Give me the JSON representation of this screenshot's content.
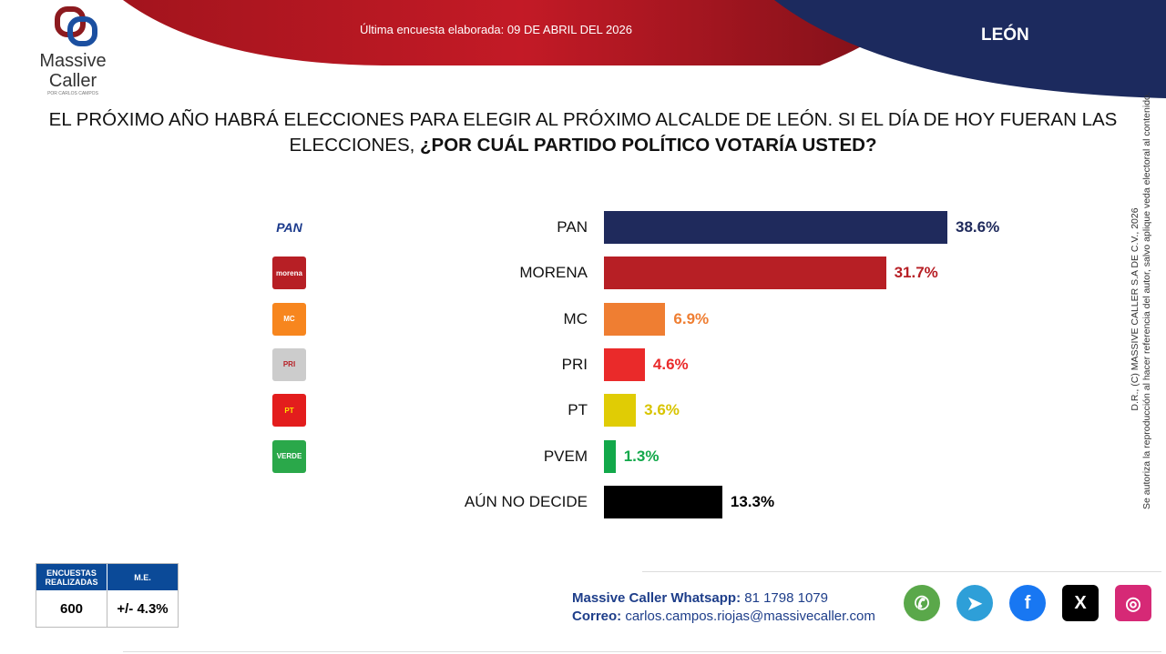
{
  "header": {
    "date_text": "Última encuesta elaborada: 09 DE ABRIL DEL 2026",
    "city": "LEÓN"
  },
  "brand": {
    "line1": "Massive",
    "line2": "Caller",
    "tagline": "POR CARLOS CAMPOS"
  },
  "question": {
    "normal": "EL PRÓXIMO AÑO HABRÁ ELECCIONES PARA ELEGIR AL PRÓXIMO ALCALDE DE LEÓN. SI EL DÍA DE HOY FUERAN LAS ELECCIONES, ",
    "bold": "¿POR CUÁL PARTIDO POLÍTICO VOTARÍA USTED?"
  },
  "chart_data": {
    "type": "bar",
    "orientation": "horizontal",
    "categories": [
      "PAN",
      "MORENA",
      "MC",
      "PRI",
      "PT",
      "PVEM",
      "AÚN NO DECIDE"
    ],
    "values": [
      38.6,
      31.7,
      6.9,
      4.6,
      3.6,
      1.3,
      13.3
    ],
    "labels": [
      "38.6%",
      "31.7%",
      "6.9%",
      "4.6%",
      "3.6%",
      "1.3%",
      "13.3%"
    ],
    "colors": [
      "#1f2a5c",
      "#b71f25",
      "#ef7e32",
      "#ea2a2a",
      "#e0cc05",
      "#12a84a",
      "#000000"
    ],
    "value_label_colors": [
      "#1f2a5c",
      "#b71f25",
      "#ef7e32",
      "#ea2a2a",
      "#d8c400",
      "#12a84a",
      "#000000"
    ],
    "party_logos": [
      {
        "text": "PAN",
        "bg": "#ffffff",
        "fg": "#1b3a8c"
      },
      {
        "text": "morena",
        "bg": "#b71f25",
        "fg": "#ffffff"
      },
      {
        "text": "MC",
        "bg": "#f7861e",
        "fg": "#ffffff"
      },
      {
        "text": "PRI",
        "bg": "#cccccc",
        "fg": "#b71f25"
      },
      {
        "text": "PT",
        "bg": "#e31d1d",
        "fg": "#ffe000"
      },
      {
        "text": "VERDE",
        "bg": "#2aa84a",
        "fg": "#ffffff"
      },
      {
        "text": "",
        "bg": "#ffffff",
        "fg": "#ffffff"
      }
    ],
    "grid": false
  },
  "sidebar": {
    "line1": "D.R., (C) MASSIVE CALLER S.A DE C.V., 2026",
    "line2": "Se autoriza la reproducción al hacer referencia del autor, salvo aplique veda electoral al contenido."
  },
  "stats": {
    "h1": "ENCUESTAS REALIZADAS",
    "h2": "M.E.",
    "v1": "600",
    "v2": "+/- 4.3%"
  },
  "contact": {
    "wa_label": "Massive Caller Whatsapp:",
    "wa": "81 1798 1079",
    "mail_label": "Correo:",
    "mail": "carlos.campos.riojas@massivecaller.com"
  },
  "social": [
    {
      "name": "whatsapp",
      "glyph": "✆",
      "color": "#5aa84a"
    },
    {
      "name": "telegram",
      "glyph": "➤",
      "color": "#2e9fd8"
    },
    {
      "name": "facebook",
      "glyph": "f",
      "color": "#1877f2"
    },
    {
      "name": "x",
      "glyph": "X",
      "color": "#000000"
    },
    {
      "name": "instagram",
      "glyph": "◎",
      "color": "#d62976"
    }
  ]
}
